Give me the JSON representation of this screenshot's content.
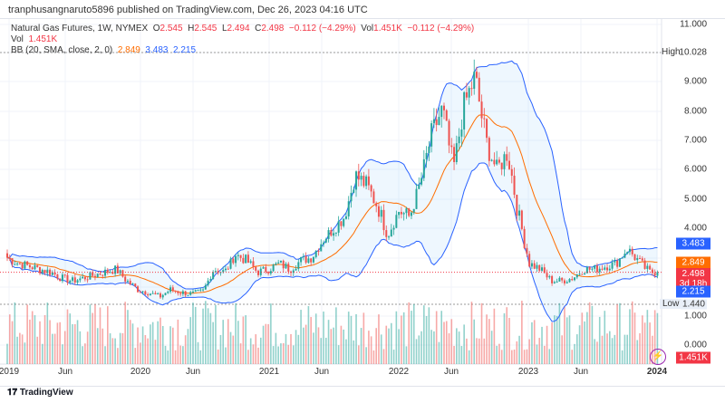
{
  "header": {
    "published": "tranphusangnaruto5896 published on TradingView.com, Dec 26, 2023 04:16 UTC"
  },
  "legend": {
    "symbol": "Natural Gas Futures, 1W, NYMEX",
    "o_label": "O",
    "o": "2.545",
    "h_label": "H",
    "h": "2.545",
    "l_label": "L",
    "l": "2.494",
    "c_label": "C",
    "c": "2.498",
    "chg": "−0.112 (−4.29%)",
    "vol_label": "Vol",
    "vol": "1.451K",
    "vol_chg": "−0.112 (−4.29%)",
    "vol2_label": "Vol",
    "vol2": "1.451K",
    "bb_label": "BB (20, SMA, close, 2, 0)",
    "bb_mid": "2.849",
    "bb_up": "3.483",
    "bb_low": "2.215"
  },
  "axis": {
    "ticks": [
      "11.000",
      "9.000",
      "8.000",
      "7.000",
      "6.000",
      "5.000",
      "4.000",
      "1.000",
      "0.000"
    ],
    "high_label": "High",
    "high": "10.028",
    "low_label": "Low",
    "low": "1.440"
  },
  "badges": {
    "upper": "3.483",
    "mid": "2.849",
    "last": "2.498",
    "countdown": "3d 18h",
    "lower": "2.215",
    "volume": "1.451K"
  },
  "time_axis": [
    "2019",
    "Jun",
    "2020",
    "Jun",
    "2021",
    "Jun",
    "2022",
    "Jun",
    "2023",
    "Jun",
    "2024"
  ],
  "footer": {
    "brand": "TradingView"
  },
  "colors": {
    "up": "#26a69a",
    "down": "#ef5350",
    "band": "#2962ff",
    "basis": "#ff6d00"
  },
  "chart_data": {
    "type": "candlestick",
    "interval": "1W",
    "note": "approximate monthly closes 2019-01..2023-12",
    "monthly_close": [
      3.0,
      2.8,
      2.7,
      2.6,
      2.5,
      2.3,
      2.2,
      2.3,
      2.4,
      2.5,
      2.6,
      2.2,
      1.9,
      1.8,
      1.65,
      1.9,
      1.8,
      1.75,
      1.85,
      2.6,
      2.5,
      3.1,
      2.9,
      2.5,
      2.6,
      2.8,
      2.6,
      2.9,
      3.0,
      3.6,
      4.0,
      4.4,
      5.8,
      5.5,
      4.8,
      3.8,
      4.6,
      4.4,
      5.6,
      7.2,
      8.1,
      6.0,
      8.2,
      9.2,
      7.0,
      6.0,
      6.6,
      4.5,
      2.8,
      2.6,
      2.2,
      2.2,
      2.3,
      2.6,
      2.6,
      2.7,
      2.8,
      3.3,
      2.9,
      2.5
    ],
    "ylim": [
      0,
      11
    ]
  }
}
